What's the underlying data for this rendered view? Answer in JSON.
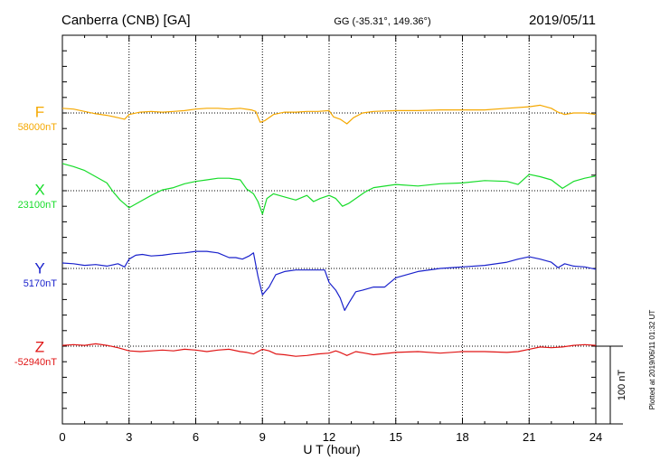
{
  "header": {
    "station": "Canberra (CNB)  [GA]",
    "coords": "GG (-35.31°, 149.36°)",
    "date": "2019/05/11"
  },
  "side_note": "Plotted at 2019/06/11 01:32 UT",
  "scale_label": "100 nT",
  "chart_data": {
    "type": "line",
    "title": "Canberra (CNB)  [GA]",
    "xlabel": "U T (hour)",
    "ylabel": "",
    "x_ticks": [
      "0",
      "3",
      "6",
      "9",
      "12",
      "15",
      "18",
      "21",
      "24"
    ],
    "xlim": [
      0,
      24
    ],
    "grid": true,
    "scale_bar_nT": 100,
    "series": [
      {
        "name": "F",
        "baseline_label": "58000nT",
        "baseline_nT": 58000,
        "color": "#f5a800",
        "x": [
          0,
          0.5,
          1,
          1.5,
          2,
          2.5,
          2.8,
          3,
          3.5,
          4,
          4.5,
          5,
          5.5,
          6,
          6.5,
          7,
          7.5,
          8,
          8.5,
          8.7,
          8.9,
          9.1,
          9.5,
          10,
          10.5,
          11,
          11.5,
          12,
          12.2,
          12.5,
          12.8,
          13.1,
          13.5,
          14,
          15,
          16,
          17,
          18,
          19,
          20,
          21,
          21.5,
          22,
          22.3,
          22.6,
          23,
          23.5,
          24
        ],
        "values": [
          6,
          5,
          2,
          -1,
          -3,
          -6,
          -8,
          -2,
          1,
          2,
          1,
          2,
          3,
          5,
          6,
          6,
          5,
          6,
          4,
          2,
          -12,
          -10,
          -2,
          1,
          1,
          2,
          2,
          3,
          -5,
          -8,
          -14,
          -6,
          0,
          2,
          3,
          3,
          4,
          4,
          4,
          6,
          8,
          10,
          6,
          1,
          -2,
          0,
          0,
          -2
        ]
      },
      {
        "name": "X",
        "baseline_label": "23100nT",
        "baseline_nT": 23100,
        "color": "#17dc2a",
        "x": [
          0,
          0.5,
          1,
          1.5,
          2,
          2.3,
          2.6,
          3,
          3.5,
          4,
          4.5,
          5,
          5.5,
          6,
          6.5,
          7,
          7.5,
          8,
          8.3,
          8.6,
          8.8,
          9,
          9.2,
          9.5,
          10,
          10.5,
          11,
          11.3,
          11.6,
          12,
          12.3,
          12.6,
          12.9,
          13.3,
          13.6,
          14,
          15,
          16,
          17,
          18,
          19,
          20,
          20.5,
          21,
          21.5,
          22,
          22.5,
          23,
          23.5,
          24
        ],
        "values": [
          35,
          31,
          26,
          18,
          10,
          -2,
          -12,
          -22,
          -14,
          -6,
          1,
          4,
          9,
          12,
          14,
          16,
          16,
          14,
          2,
          -4,
          -14,
          -30,
          -10,
          -4,
          -8,
          -12,
          -6,
          -14,
          -10,
          -6,
          -10,
          -20,
          -16,
          -8,
          -2,
          4,
          8,
          6,
          9,
          10,
          13,
          12,
          8,
          21,
          18,
          14,
          3,
          12,
          16,
          19
        ]
      },
      {
        "name": "Y",
        "baseline_label": "5170nT",
        "baseline_nT": 5170,
        "color": "#1a22cc",
        "x": [
          0,
          0.5,
          1,
          1.5,
          2,
          2.5,
          2.8,
          3,
          3.3,
          3.6,
          4,
          4.5,
          5,
          5.5,
          6,
          6.5,
          7,
          7.5,
          7.8,
          8.1,
          8.4,
          8.6,
          8.8,
          9,
          9.3,
          9.6,
          10,
          10.5,
          11,
          11.5,
          11.8,
          12,
          12.3,
          12.5,
          12.7,
          12.9,
          13.2,
          13.5,
          14,
          14.5,
          15,
          16,
          17,
          18,
          19,
          20,
          20.5,
          21,
          21.5,
          22,
          22.3,
          22.6,
          23,
          23.5,
          24
        ],
        "values": [
          7,
          6,
          4,
          5,
          3,
          6,
          2,
          12,
          17,
          18,
          16,
          17,
          19,
          20,
          22,
          22,
          20,
          14,
          14,
          12,
          16,
          20,
          -10,
          -34,
          -24,
          -8,
          -4,
          -2,
          -2,
          -2,
          -2,
          -18,
          -28,
          -38,
          -54,
          -44,
          -30,
          -28,
          -24,
          -24,
          -12,
          -4,
          0,
          2,
          4,
          8,
          12,
          15,
          12,
          8,
          1,
          6,
          3,
          2,
          -1
        ]
      },
      {
        "name": "Z",
        "baseline_label": "-52940nT",
        "baseline_nT": -52940,
        "color": "#e01515",
        "x": [
          0,
          0.5,
          1,
          1.5,
          2,
          2.5,
          3,
          3.5,
          4,
          4.5,
          5,
          5.5,
          6,
          6.5,
          7,
          7.5,
          8,
          8.3,
          8.6,
          9,
          9.3,
          9.6,
          10,
          10.5,
          11,
          11.5,
          12,
          12.3,
          12.5,
          12.8,
          13.2,
          13.6,
          14,
          15,
          16,
          17,
          18,
          19,
          20,
          20.5,
          21,
          21.5,
          22,
          22.5,
          23,
          23.5,
          24
        ],
        "values": [
          1,
          2,
          1,
          3,
          1,
          -2,
          -6,
          -7,
          -6,
          -5,
          -6,
          -4,
          -5,
          -7,
          -5,
          -4,
          -7,
          -8,
          -10,
          -4,
          -6,
          -10,
          -11,
          -13,
          -12,
          -10,
          -9,
          -6,
          -8,
          -12,
          -7,
          -9,
          -11,
          -8,
          -7,
          -9,
          -7,
          -7,
          -8,
          -7,
          -4,
          -1,
          -2,
          -1,
          1,
          2,
          1
        ]
      }
    ]
  }
}
